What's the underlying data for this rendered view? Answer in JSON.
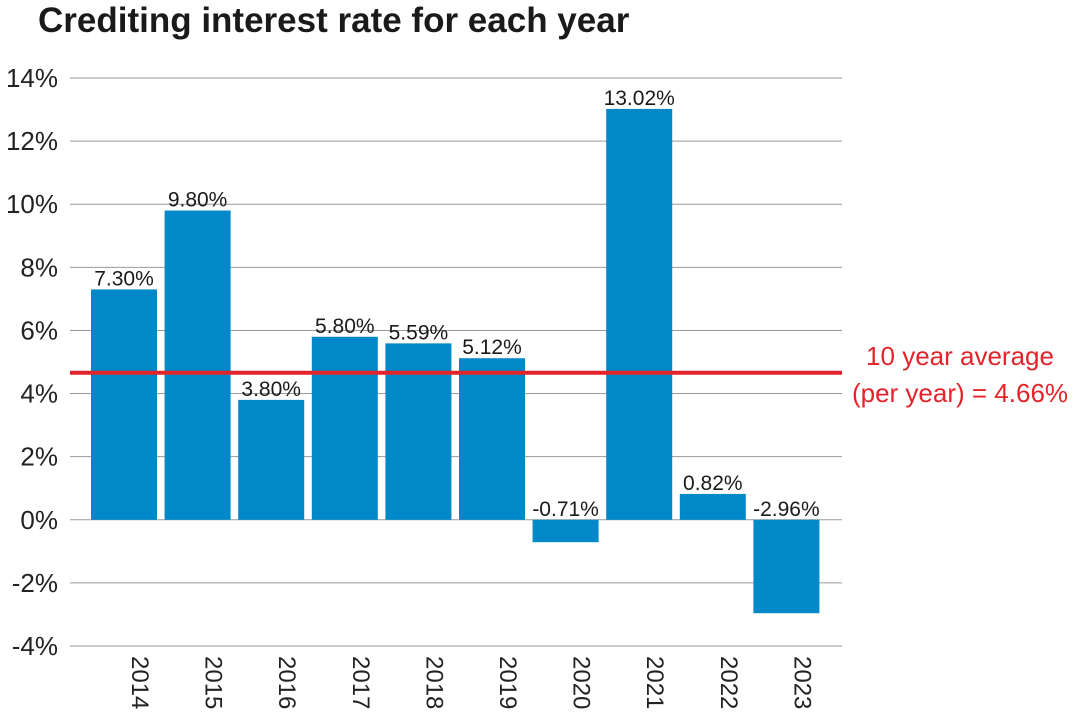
{
  "chart_data": {
    "type": "bar",
    "title": "Crediting interest rate for each year",
    "categories": [
      "2014",
      "2015",
      "2016",
      "2017",
      "2018",
      "2019",
      "2020",
      "2021",
      "2022",
      "2023"
    ],
    "values": [
      7.3,
      9.8,
      3.8,
      5.8,
      5.59,
      5.12,
      -0.71,
      13.02,
      0.82,
      -2.96
    ],
    "data_labels": [
      "7.30%",
      "9.80%",
      "3.80%",
      "5.80%",
      "5.59%",
      "5.12%",
      "-0.71%",
      "13.02%",
      "0.82%",
      "-2.96%"
    ],
    "ylim": [
      -4,
      14
    ],
    "yticks": [
      14,
      12,
      10,
      8,
      6,
      4,
      2,
      0,
      -2,
      -4
    ],
    "ytick_labels": [
      "14%",
      "12%",
      "10%",
      "8%",
      "6%",
      "4%",
      "2%",
      "0%",
      "-2%",
      "-4%"
    ],
    "grid": true,
    "bar_color": "#0088c8",
    "average": {
      "value": 4.66,
      "label_line1": "10 year average",
      "label_line2": "(per year) = 4.66%",
      "color": "#e3242b"
    }
  }
}
